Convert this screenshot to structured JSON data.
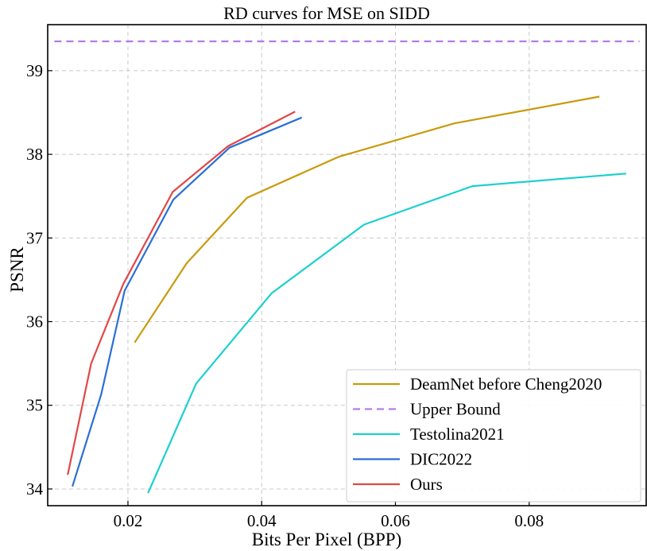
{
  "chart_data": {
    "type": "line",
    "title": "RD curves for MSE on SIDD",
    "xlabel": "Bits Per Pixel (BPP)",
    "ylabel": "PSNR",
    "xlim": [
      0.008,
      0.0975
    ],
    "ylim": [
      33.8,
      39.55
    ],
    "xticks": [
      0.02,
      0.04,
      0.06,
      0.08
    ],
    "xtick_labels": [
      "0.02",
      "0.04",
      "0.06",
      "0.08"
    ],
    "yticks": [
      34,
      35,
      36,
      37,
      38,
      39
    ],
    "ytick_labels": [
      "34",
      "35",
      "36",
      "37",
      "38",
      "39"
    ],
    "grid": true,
    "legend_position": "lower-right",
    "series": [
      {
        "name": "DeamNet before Cheng2020",
        "color": "#c99a0b",
        "dash": "solid",
        "x": [
          0.021,
          0.0288,
          0.0378,
          0.0515,
          0.0688,
          0.0905
        ],
        "y": [
          35.75,
          36.7,
          37.48,
          37.97,
          38.37,
          38.69
        ]
      },
      {
        "name": "Upper Bound",
        "color": "#b57be6",
        "dash": "dashed",
        "x": [
          0.009,
          0.0965
        ],
        "y": [
          39.35,
          39.35
        ]
      },
      {
        "name": "Testolina2021",
        "color": "#1ccfcf",
        "dash": "solid",
        "x": [
          0.023,
          0.0302,
          0.0415,
          0.0553,
          0.0715,
          0.0945
        ],
        "y": [
          33.95,
          35.26,
          36.34,
          37.16,
          37.62,
          37.77
        ]
      },
      {
        "name": "DIC2022",
        "color": "#2a6fd6",
        "dash": "solid",
        "x": [
          0.0117,
          0.016,
          0.0195,
          0.0268,
          0.0352,
          0.046
        ],
        "y": [
          34.03,
          35.13,
          36.37,
          37.46,
          38.08,
          38.44
        ]
      },
      {
        "name": "Ours",
        "color": "#e04848",
        "dash": "solid",
        "x": [
          0.011,
          0.0145,
          0.0193,
          0.0267,
          0.035,
          0.045
        ],
        "y": [
          34.17,
          35.5,
          36.45,
          37.55,
          38.1,
          38.51
        ]
      }
    ]
  }
}
